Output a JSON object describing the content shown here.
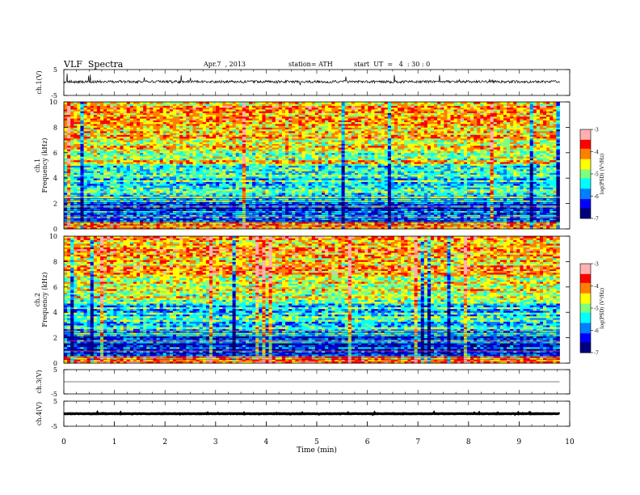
{
  "header": {
    "title": "VLF  Spectra",
    "date": "Apr.7  , 2013",
    "station": "station= ATH",
    "start": "start  UT  =   4  : 30 : 0"
  },
  "chart_data": [
    {
      "type": "line",
      "name": "ch1-waveform",
      "ylabel": "ch.1(V)",
      "ylim": [
        -5,
        5
      ],
      "y_ticklabels": [
        "5",
        "-5"
      ],
      "xlim": [
        0,
        10
      ],
      "data_end_min": 9.8,
      "baseline_v": 0.3,
      "amplitude_v": 1.0
    },
    {
      "type": "heatmap",
      "name": "ch1-spectrogram",
      "ylabel_top": "ch.1",
      "ylabel": "Frequency (kHz)",
      "ylim": [
        0,
        10
      ],
      "y_ticks": [
        0,
        2,
        4,
        6,
        8,
        10
      ],
      "xlim": [
        0,
        10
      ],
      "data_end_min": 9.8,
      "colorbar": {
        "label": "log(PSD) (V²/Hz)",
        "range": [
          -7,
          -3
        ],
        "ticks": [
          -3,
          -4,
          -5,
          -6,
          -7
        ],
        "labels": [
          "-3",
          "-4",
          "-5",
          "-6",
          "-7"
        ]
      }
    },
    {
      "type": "heatmap",
      "name": "ch2-spectrogram",
      "ylabel_top": "ch.2",
      "ylabel": "Frequency (kHz)",
      "ylim": [
        0,
        10
      ],
      "y_ticks": [
        0,
        2,
        4,
        6,
        8,
        10
      ],
      "xlim": [
        0,
        10
      ],
      "data_end_min": 9.8,
      "colorbar": {
        "label": "log(PSD) (V²/Hz)",
        "range": [
          -7,
          -3
        ],
        "ticks": [
          -3,
          -4,
          -5,
          -6,
          -7
        ],
        "labels": [
          "-3",
          "-4",
          "-5",
          "-6",
          "-7"
        ]
      }
    },
    {
      "type": "line",
      "name": "ch3-waveform",
      "ylabel": "ch.3(V)",
      "ylim": [
        -5,
        5
      ],
      "y_ticklabels": [
        "5",
        "-5"
      ],
      "xlim": [
        0,
        10
      ],
      "data_end_min": 9.8,
      "baseline_v": 0.0,
      "amplitude_v": 0.0
    },
    {
      "type": "line",
      "name": "ch4-waveform",
      "ylabel": "ch.4(V)",
      "ylim": [
        -5,
        5
      ],
      "y_ticklabels": [
        "5",
        "-5"
      ],
      "xlim": [
        0,
        10
      ],
      "data_end_min": 9.8,
      "baseline_v": 0.0,
      "amplitude_v": 0.15
    }
  ],
  "x_axis": {
    "label": "Time  (min)",
    "ticks": [
      0,
      1,
      2,
      3,
      4,
      5,
      6,
      7,
      8,
      9,
      10
    ],
    "ticklabels": [
      "0",
      "1",
      "2",
      "3",
      "4",
      "5",
      "6",
      "7",
      "8",
      "9",
      "10"
    ]
  },
  "colors": {
    "colormap": [
      "#00007f",
      "#0000ff",
      "#007fff",
      "#00ffff",
      "#7fff7f",
      "#ffff00",
      "#ff7f00",
      "#ff0000",
      "#ffb0b0"
    ]
  }
}
